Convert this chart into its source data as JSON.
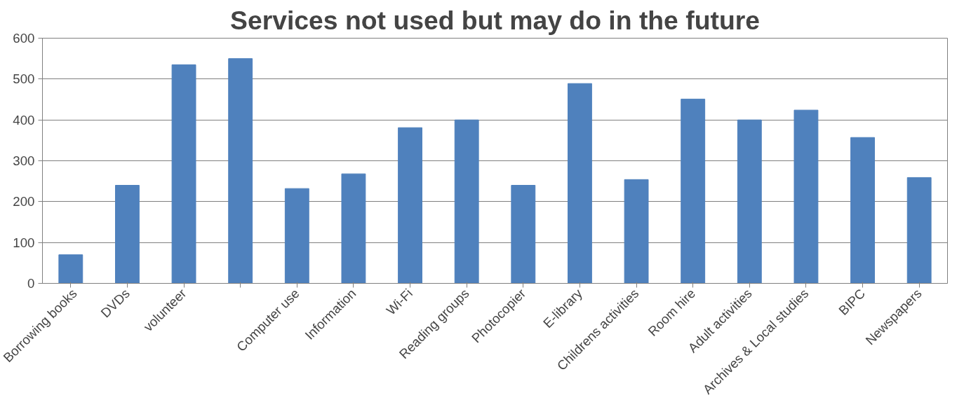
{
  "chart_data": {
    "type": "bar",
    "title": "Services not used but may do in the future",
    "categories": [
      "Borrowing books",
      "DVDs",
      "volunteer",
      null,
      "Computer use",
      "Information",
      "Wi-Fi",
      "Reading groups",
      "Photocopier",
      "E-library",
      "Childrens activities",
      "Room hire",
      "Adult activities",
      "Archives & Local studies",
      "BIPC",
      "Newspapers"
    ],
    "values": [
      70,
      240,
      535,
      550,
      232,
      268,
      381,
      400,
      240,
      489,
      254,
      451,
      400,
      424,
      357,
      259
    ],
    "color": "#4f81bd",
    "ylim": [
      0,
      600
    ],
    "yticks": [
      0,
      100,
      200,
      300,
      400,
      500,
      600
    ],
    "grid": "y"
  }
}
